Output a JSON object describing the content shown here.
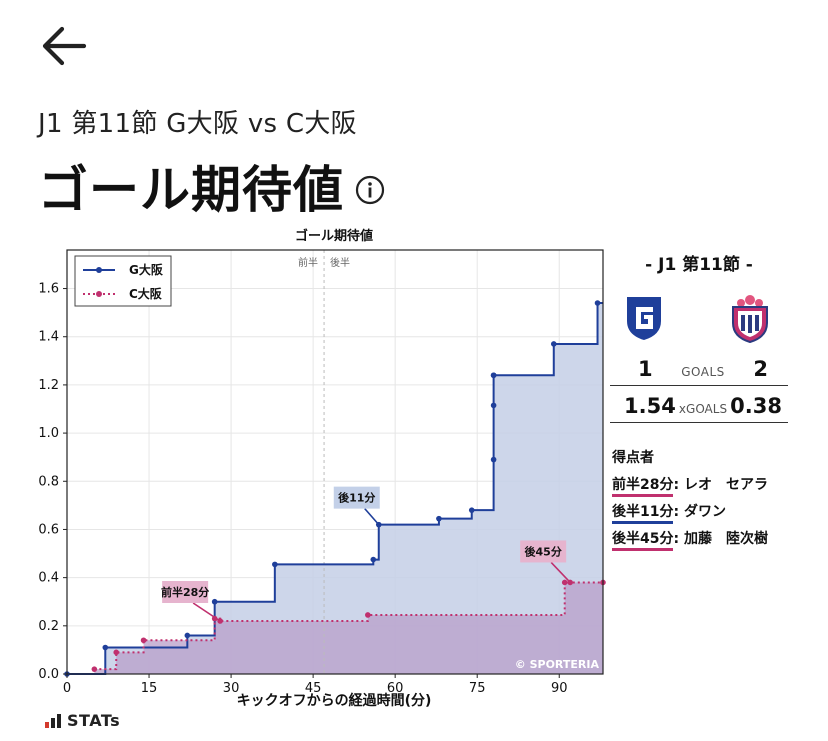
{
  "header": {
    "subtitle": "J1 第11節 G大阪 vs C大阪",
    "title": "ゴール期待値"
  },
  "icons": {
    "back": "arrow-left-icon",
    "info": "info-circle-icon"
  },
  "colors": {
    "g_osaka_line": "#1f3f9a",
    "g_osaka_fill": "#c4cfe6",
    "c_osaka_line": "#c0306e",
    "c_osaka_fill": "#b89fc9",
    "label_g_bg": "#c3d0e8",
    "label_c_bg": "#e6b4ce"
  },
  "chart_data": {
    "type": "line",
    "title": "ゴール期待値",
    "xlabel": "キックオフからの経過時間(分)",
    "ylabel": "",
    "xlim": [
      0,
      98
    ],
    "ylim": [
      0,
      1.76
    ],
    "xticks": [
      0,
      15,
      30,
      45,
      60,
      75,
      90
    ],
    "yticks": [
      0.0,
      0.2,
      0.4,
      0.6,
      0.8,
      1.0,
      1.2,
      1.4,
      1.6
    ],
    "grid": true,
    "halftime": {
      "x": 47,
      "left_label": "前半",
      "right_label": "後半"
    },
    "legend": {
      "position": "top-left"
    },
    "series": [
      {
        "name": "G大阪",
        "step": true,
        "x": [
          0,
          7,
          22,
          27,
          38,
          56,
          57,
          68,
          74,
          78,
          78,
          78,
          78,
          89,
          97
        ],
        "y": [
          0,
          0.11,
          0.16,
          0.3,
          0.455,
          0.475,
          0.62,
          0.645,
          0.68,
          0.89,
          1.115,
          1.24,
          1.24,
          1.37,
          1.54
        ]
      },
      {
        "name": "C大阪",
        "step": true,
        "x": [
          5,
          9,
          14,
          27,
          28,
          55,
          91,
          92,
          98
        ],
        "y": [
          0.02,
          0.09,
          0.14,
          0.23,
          0.22,
          0.245,
          0.38,
          0.38,
          0.38
        ]
      }
    ],
    "annotations": [
      {
        "text": "前半28分",
        "team": "c",
        "x": 28,
        "y": 0.22
      },
      {
        "text": "後11分",
        "team": "g",
        "x": 57,
        "y": 0.62
      },
      {
        "text": "後45分",
        "team": "c",
        "x": 92,
        "y": 0.38
      }
    ],
    "watermark": "© SPORTERIA"
  },
  "panel": {
    "match_title": "- J1 第11節 -",
    "home_logo": "gamba-osaka-crest",
    "away_logo": "cerezo-osaka-crest",
    "goals_home": "1",
    "goals_label": "GOALS",
    "goals_away": "2",
    "xg_home": "1.54",
    "xg_label": "xGOALS",
    "xg_away": "0.38",
    "scorers_heading": "得点者",
    "scorers": [
      {
        "time": "前半28分",
        "name": ": レオ　セアラ",
        "team": "c"
      },
      {
        "time": "後半11分",
        "name": ": ダワン",
        "team": "g"
      },
      {
        "time": "後半45分",
        "name": ": 加藤　陸次樹",
        "team": "c"
      }
    ]
  },
  "footer": {
    "brand": "STATs"
  }
}
